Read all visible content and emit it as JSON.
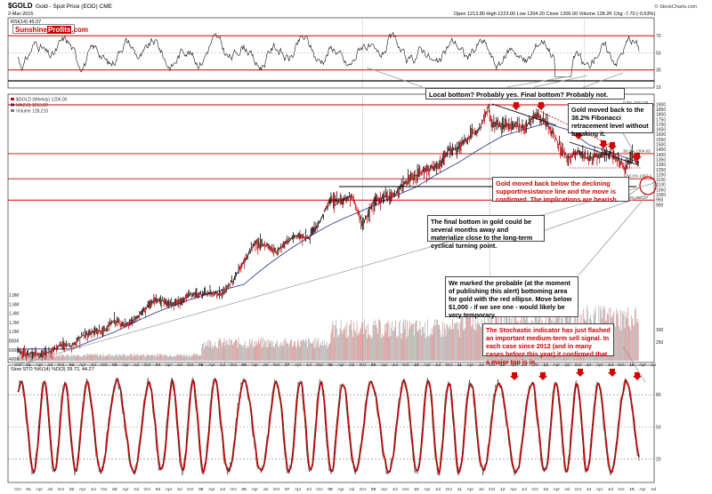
{
  "header": {
    "symbol": "$GOLD",
    "description": "Gold - Spot Price (EOD) CME",
    "date": "2-Mar-2015",
    "ohlc": "Open 1213.80  High 1223.00  Low 1204.20  Close 1206.00  Volume 128.2K  Chg -7.70 (-0.63%)",
    "credit": "© StockCharts.com"
  },
  "logo": {
    "part1": "Sunshine",
    "part2": "Profits",
    "part3": ".com"
  },
  "rsi_panel": {
    "label": "RSI(14) 45.07",
    "ticks": [
      "70",
      "50",
      "30",
      "10"
    ],
    "last_value": 45.07
  },
  "price_panel": {
    "legend": [
      "$GOLD (Weekly) 1206.00",
      "MA(50) 1213.89",
      "Volume 128,210"
    ],
    "ticks": [
      "1900",
      "1850",
      "1800",
      "1750",
      "1700",
      "1650",
      "1600",
      "1550",
      "1500",
      "1450",
      "1400",
      "1350",
      "1300",
      "1250",
      "1200",
      "1150",
      "1100",
      "1050",
      "1000",
      "950",
      "900"
    ],
    "vol_ticks": [
      "1.8M",
      "1.6M",
      "1.4M",
      "1.2M",
      "1.0M",
      "800K",
      "600K",
      "400K",
      "200K"
    ],
    "low_ticks": [
      "300",
      "250"
    ],
    "fib_labels": [
      "0.0% 1923.59",
      "38.2% 1304.05",
      "50.0% 1067.1",
      "61.8% 900.27"
    ]
  },
  "sto_panel": {
    "label": "Slow STO %K(14) %D(3) 39.72, 44.27",
    "ticks": [
      "80",
      "50",
      "20"
    ]
  },
  "x_axis": {
    "rows": [
      [
        "Oct",
        "01",
        "Apr",
        "Jul",
        "Oct",
        "02",
        "Apr",
        "Jul",
        "Oct",
        "03",
        "Apr",
        "Jul",
        "Oct",
        "04",
        "Apr",
        "Jul",
        "Oct",
        "05",
        "Apr",
        "Jul",
        "Oct",
        "06",
        "Apr",
        "Jul",
        "Oct",
        "07",
        "Apr",
        "Jul",
        "Oct",
        "08",
        "Apr",
        "Jul",
        "Oct",
        "09",
        "Apr",
        "Jul",
        "Oct",
        "10",
        "Apr",
        "Jul",
        "Oct",
        "11",
        "Apr",
        "Jul",
        "Oct",
        "12",
        "Apr",
        "Jul",
        "Oct",
        "13",
        "Apr",
        "Jul",
        "Oct",
        "14",
        "Apr",
        "Jul",
        "Oct",
        "15",
        "Apr",
        "Jul"
      ]
    ]
  },
  "annotations": {
    "local_bottom": "Local bottom? Probably yes. Final bottom? Probably not.",
    "fib_note": "Gold moved back to the 38.2% Fibonacci retracement level without breaking it.",
    "bearish_note": "Gold moved back below the declining support/resistance line and the move is confirmed. The implications are bearish.",
    "final_bottom": "The final bottom in gold could be several months away and materialize close to the long-term cyclical turning point.",
    "ellipse_note": "We marked the probable (at the moment of publishing this alert) bottoming area for gold with the red ellipse. Move below $1,000 - if we see one - would likely be very temporary.",
    "sto_note": "The Stochastic indicator has just flashed an important medium-term sell signal. In each case since 2012 (and in many cases before this year) it confirmed that a major top is in."
  },
  "colors": {
    "price_up": "#000000",
    "price_down": "#cc0000",
    "ma": "#1f2b8a",
    "volume": "#b0b0b0",
    "sto_k": "#000000",
    "sto_d": "#cc0000",
    "red_line": "#cc0000",
    "arrow": "#d40000",
    "border": "#444444"
  },
  "chart_data": {
    "type": "line",
    "title": "$GOLD Gold - Spot Price (EOD) CME",
    "x_range": [
      "2000-10",
      "2015-03"
    ],
    "series": [
      {
        "name": "$GOLD (Weekly) 1206.00",
        "x": [
          "2000-10",
          "2001-01",
          "2001-04",
          "2001-07",
          "2001-10",
          "2002-01",
          "2002-04",
          "2002-07",
          "2002-10",
          "2003-01",
          "2003-04",
          "2003-07",
          "2003-10",
          "2004-01",
          "2004-04",
          "2004-07",
          "2004-10",
          "2005-01",
          "2005-04",
          "2005-07",
          "2005-10",
          "2006-01",
          "2006-04",
          "2006-07",
          "2006-10",
          "2007-01",
          "2007-04",
          "2007-07",
          "2007-10",
          "2008-01",
          "2008-04",
          "2008-07",
          "2008-10",
          "2009-01",
          "2009-04",
          "2009-07",
          "2009-10",
          "2010-01",
          "2010-04",
          "2010-07",
          "2010-10",
          "2011-01",
          "2011-04",
          "2011-07",
          "2011-09",
          "2011-10",
          "2012-01",
          "2012-04",
          "2012-07",
          "2012-10",
          "2013-01",
          "2013-04",
          "2013-07",
          "2013-10",
          "2014-01",
          "2014-04",
          "2014-07",
          "2014-10",
          "2014-11",
          "2015-01",
          "2015-03"
        ],
        "values": [
          270,
          265,
          262,
          268,
          285,
          282,
          305,
          315,
          318,
          345,
          330,
          350,
          385,
          410,
          395,
          400,
          425,
          425,
          430,
          425,
          475,
          550,
          640,
          630,
          600,
          650,
          680,
          665,
          750,
          900,
          900,
          930,
          730,
          880,
          920,
          940,
          1040,
          1100,
          1150,
          1180,
          1340,
          1370,
          1500,
          1620,
          1900,
          1650,
          1650,
          1640,
          1600,
          1770,
          1680,
          1450,
          1250,
          1320,
          1240,
          1290,
          1310,
          1220,
          1150,
          1280,
          1206
        ]
      },
      {
        "name": "MA(50) 1213.89",
        "x": [
          "2000-10",
          "2002-01",
          "2003-01",
          "2004-01",
          "2005-01",
          "2006-01",
          "2007-01",
          "2008-01",
          "2009-01",
          "2010-01",
          "2011-01",
          "2012-01",
          "2013-01",
          "2013-07",
          "2014-01",
          "2015-03"
        ],
        "values": [
          275,
          275,
          315,
          370,
          420,
          460,
          600,
          740,
          860,
          1000,
          1220,
          1500,
          1660,
          1580,
          1400,
          1214
        ]
      }
    ],
    "rsi": {
      "label": "RSI(14) 45.07",
      "ylim": [
        10,
        90
      ],
      "levels": [
        70,
        50,
        30
      ]
    },
    "stochastic": {
      "label": "Slow STO %K(14) %D(3) 39.72, 44.27",
      "ylim": [
        0,
        100
      ],
      "levels": [
        80,
        50,
        20
      ]
    },
    "y_scale": "log",
    "ylim": [
      240,
      1950
    ],
    "fibonacci": [
      {
        "label": "0.0%",
        "value": 1923.59
      },
      {
        "label": "38.2%",
        "value": 1304.05
      },
      {
        "label": "50.0%",
        "value": 1067.1
      },
      {
        "label": "61.8%",
        "value": 900.27
      }
    ],
    "horizontal_lines": [
      1304.05,
      1067.1,
      900.27,
      1923.59
    ],
    "grid": false,
    "legend": "top-left"
  }
}
